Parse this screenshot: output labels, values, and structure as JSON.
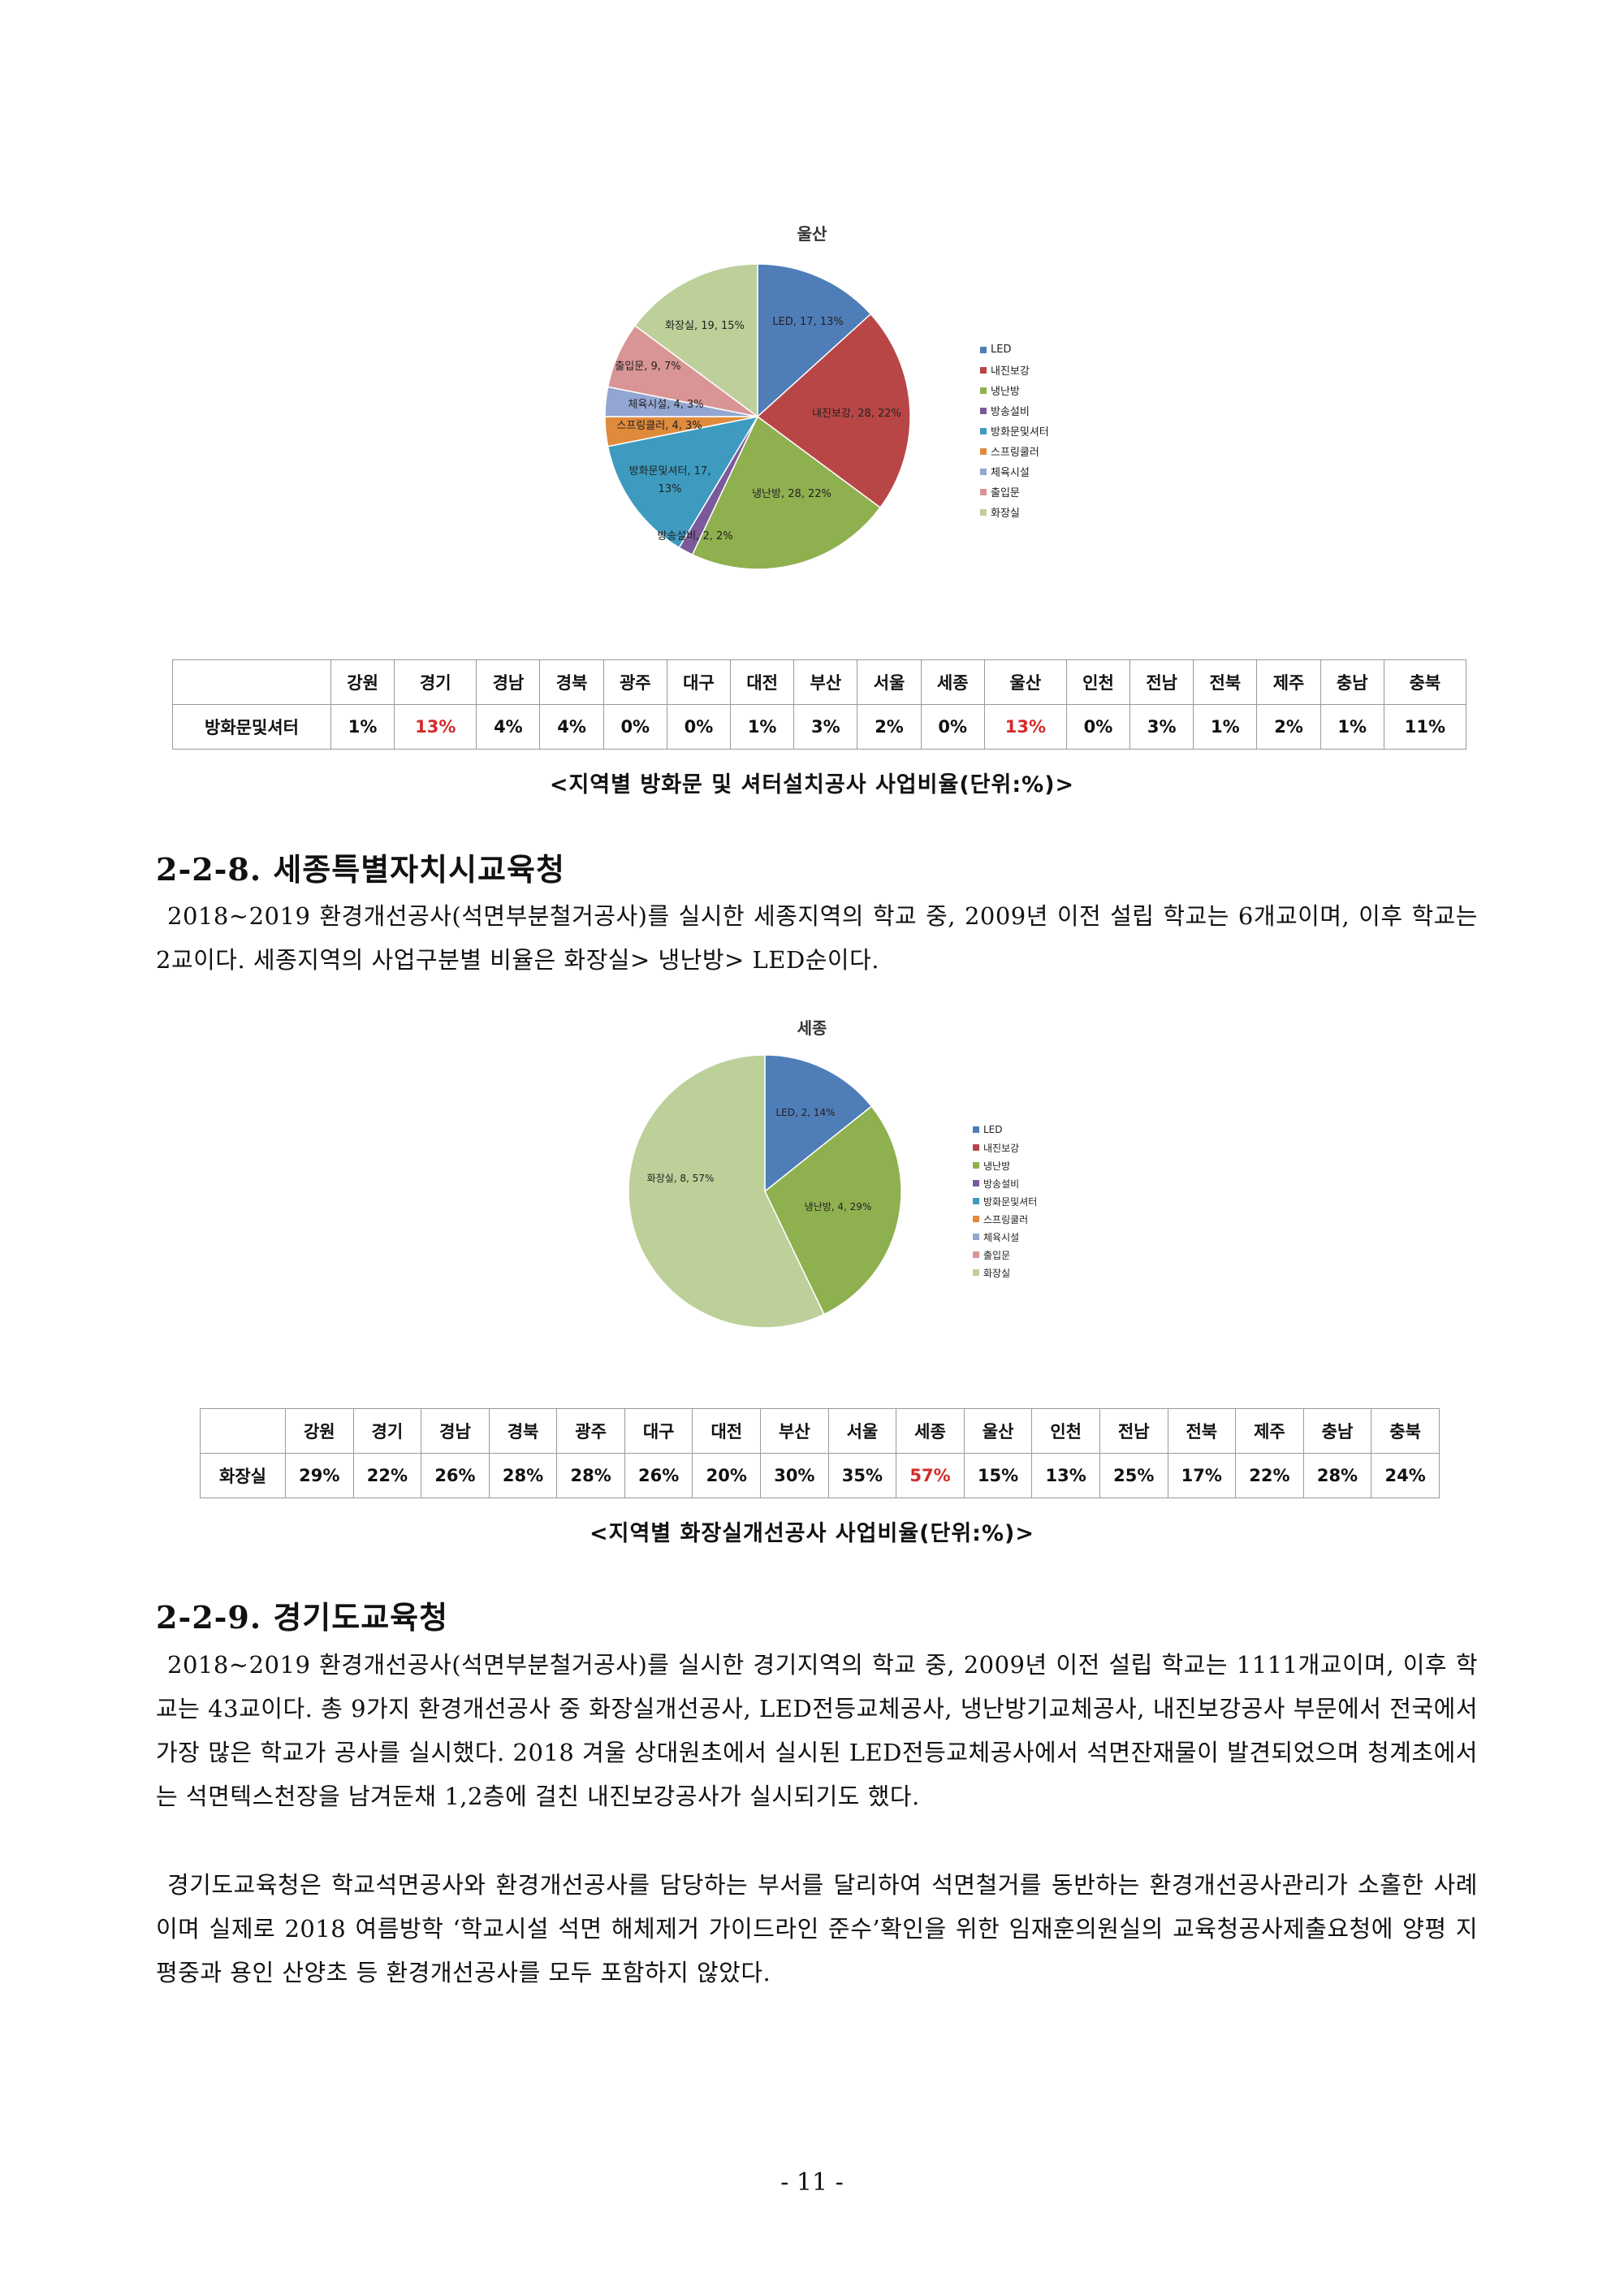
{
  "ulsan_chart": {
    "title": "울산",
    "slices": [
      {
        "label": "LED, 17, 13%",
        "value": 17,
        "color": "#4f7db8"
      },
      {
        "label": "내진보강, 28, 22%",
        "value": 28,
        "color": "#b94646"
      },
      {
        "label": "냉난방, 28, 22%",
        "value": 28,
        "color": "#8fb04e"
      },
      {
        "label": "방송설비, 2, 2%",
        "value": 2,
        "color": "#7a5a9a"
      },
      {
        "label": "방화문및셔터, 17, 13%",
        "value": 17,
        "color": "#3e9bbf"
      },
      {
        "label": "스프링클러, 4, 3%",
        "value": 4,
        "color": "#e08a3c"
      },
      {
        "label": "체육시설, 4, 3%",
        "value": 4,
        "color": "#93a6d2"
      },
      {
        "label": "출입문, 9, 7%",
        "value": 9,
        "color": "#d99595"
      },
      {
        "label": "화장실, 19, 15%",
        "value": 19,
        "color": "#bdd09a"
      }
    ],
    "legend": [
      "LED",
      "내진보강",
      "냉난방",
      "방송설비",
      "방화문및셔터",
      "스프링쿨러",
      "체육시설",
      "출입문",
      "화장실"
    ]
  },
  "sejong_chart": {
    "title": "세종",
    "slices": [
      {
        "label": "LED, 2, 14%",
        "value": 2,
        "color": "#4f7db8"
      },
      {
        "label": "냉난방, 4, 29%",
        "value": 4,
        "color": "#8fb04e"
      },
      {
        "label": "화장실, 8, 57%",
        "value": 8,
        "color": "#bdd09a"
      }
    ],
    "legend": [
      "LED",
      "내진보강",
      "냉난방",
      "방송설비",
      "방화문및셔터",
      "스프링쿨러",
      "체육시설",
      "출입문",
      "화장실"
    ]
  },
  "legend_colors": [
    "#4f7db8",
    "#b94646",
    "#8fb04e",
    "#7a5a9a",
    "#3e9bbf",
    "#e08a3c",
    "#93a6d2",
    "#d99595",
    "#bdd09a"
  ],
  "regions": [
    "강원",
    "경기",
    "경남",
    "경북",
    "광주",
    "대구",
    "대전",
    "부산",
    "서울",
    "세종",
    "울산",
    "인천",
    "전남",
    "전북",
    "제주",
    "충남",
    "충북"
  ],
  "table1": {
    "row_label": "방화문및셔터",
    "values": [
      "1%",
      "13%",
      "4%",
      "4%",
      "0%",
      "0%",
      "1%",
      "3%",
      "2%",
      "0%",
      "13%",
      "0%",
      "3%",
      "1%",
      "2%",
      "1%",
      "11%"
    ],
    "highlight_color": "#d42a2a"
  },
  "caption1": "<지역별 방화문 및 셔터설치공사 사업비율(단위:%)>",
  "heading1": "2-2-8. 세종특별자치시교육청",
  "para1": "2018~2019 환경개선공사(석면부분철거공사)를 실시한 세종지역의 학교 중, 2009년 이전 설립 학교는 6개교이며, 이후 학교는 2교이다. 세종지역의 사업구분별 비율은 화장실> 냉난방> LED순이다.",
  "table2": {
    "row_label": "화장실",
    "values": [
      "29%",
      "22%",
      "26%",
      "28%",
      "28%",
      "26%",
      "20%",
      "30%",
      "35%",
      "57%",
      "15%",
      "13%",
      "25%",
      "17%",
      "22%",
      "28%",
      "24%"
    ],
    "highlight_color": "#d42a2a"
  },
  "caption2": "<지역별 화장실개선공사 사업비율(단위:%)>",
  "heading2": "2-2-9. 경기도교육청",
  "para2": "2018~2019 환경개선공사(석면부분철거공사)를 실시한 경기지역의 학교 중, 2009년 이전 설립 학교는 1111개교이며, 이후 학교는 43교이다. 총 9가지 환경개선공사 중 화장실개선공사, LED전등교체공사, 냉난방기교체공사, 내진보강공사 부문에서 전국에서 가장 많은 학교가 공사를 실시했다. 2018 겨울 상대원초에서 실시된 LED전등교체공사에서 석면잔재물이 발견되었으며 청계초에서는 석면텍스천장을 남겨둔채 1,2층에 걸친 내진보강공사가 실시되기도 했다.",
  "para3": "경기도교육청은 학교석면공사와 환경개선공사를 담당하는 부서를 달리하여 석면철거를 동반하는 환경개선공사관리가 소홀한 사례이며 실제로 2018 여름방학 ‘학교시설 석면 해체제거 가이드라인 준수’확인을 위한 임재훈의원실의 교육청공사제출요청에 양평 지평중과 용인 산양초 등 환경개선공사를 모두 포함하지 않았다.",
  "page_number": "- 11 -"
}
